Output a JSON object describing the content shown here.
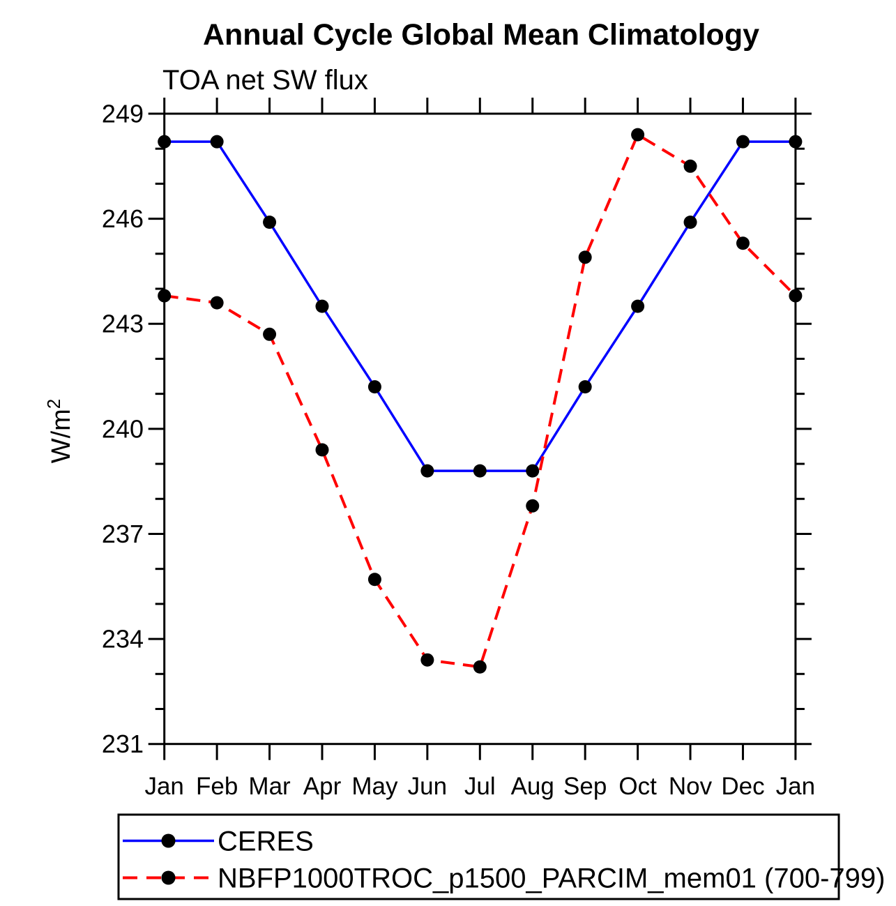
{
  "page": {
    "background": "#ffffff"
  },
  "chart_data": {
    "type": "line",
    "title": "Annual Cycle Global Mean Climatology",
    "subtitle": "TOA net SW flux",
    "ylabel_base": "W/m",
    "ylabel_exp": "2",
    "categories": [
      "Jan",
      "Feb",
      "Mar",
      "Apr",
      "May",
      "Jun",
      "Jul",
      "Aug",
      "Sep",
      "Oct",
      "Nov",
      "Dec",
      "Jan"
    ],
    "ylim": [
      231,
      249
    ],
    "ytick_major": [
      231,
      234,
      237,
      240,
      243,
      246,
      249
    ],
    "ytick_minor_step": 1,
    "grid": "off",
    "legend_position": "bottom-left-box",
    "marker": "filled-circle",
    "marker_color": "#000000",
    "series": [
      {
        "name": "CERES",
        "color": "#0000ff",
        "line_style": "solid",
        "values": [
          248.2,
          248.2,
          245.9,
          243.5,
          241.2,
          238.8,
          238.8,
          238.8,
          241.2,
          243.5,
          245.9,
          248.2,
          248.2
        ]
      },
      {
        "name": "NBFP1000TROC_p1500_PARCIM_mem01 (700-799)",
        "color": "#ff0000",
        "line_style": "dashed",
        "values": [
          243.8,
          243.6,
          242.7,
          239.4,
          235.7,
          233.4,
          233.2,
          237.8,
          244.9,
          248.4,
          247.5,
          245.3,
          243.8
        ]
      }
    ]
  }
}
